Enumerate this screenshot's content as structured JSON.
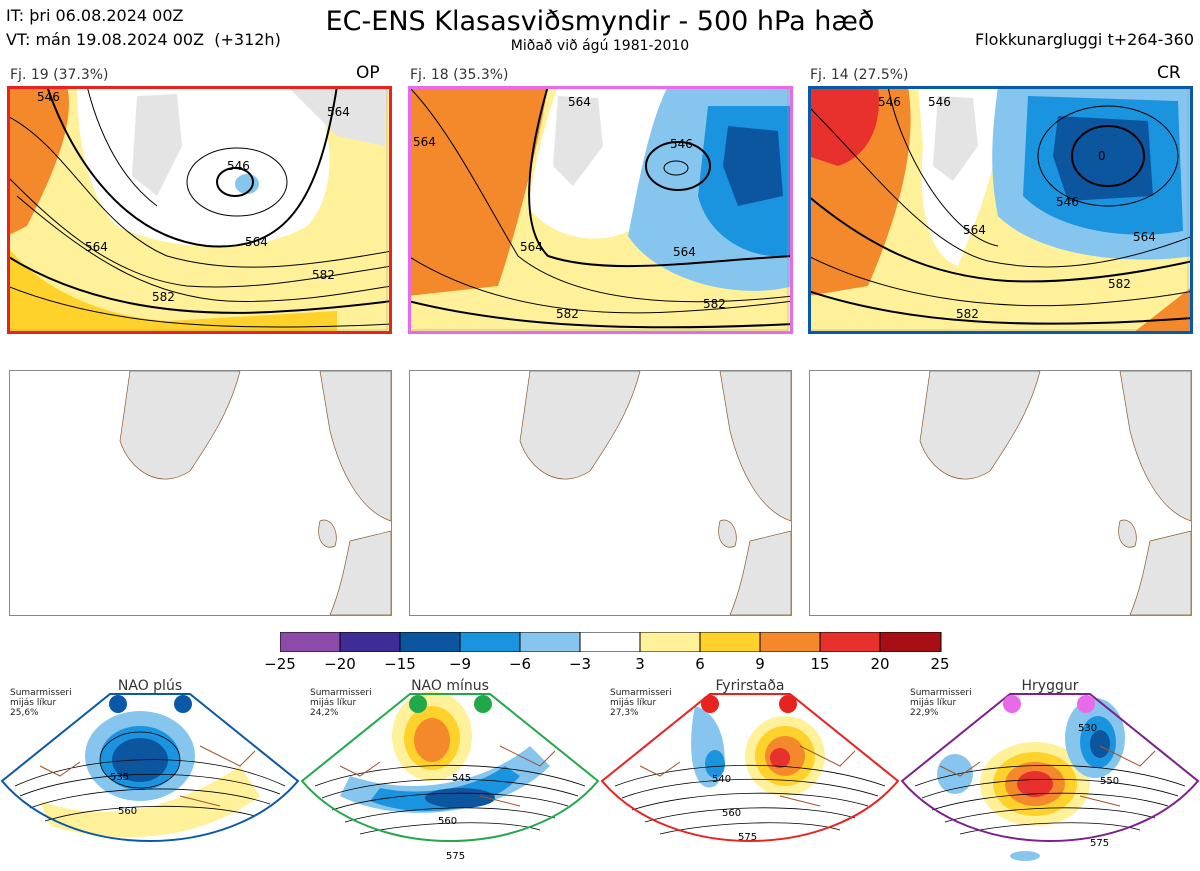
{
  "header": {
    "init_time": "IT: þri 06.08.2024 00Z",
    "valid_time": "VT: mán 19.08.2024 00Z  (+312h)",
    "title": "EC-ENS Klasasviðsmyndir - 500 hPa hæð",
    "subtitle": "Miðað við ágú 1981-2010",
    "window": "Flokkunargluggi t+264-360"
  },
  "clusters": [
    {
      "label": "Fj. 19 (37.3%)",
      "tag": "OP",
      "border_color": "#e8221f",
      "contours": [
        "546",
        "546",
        "564",
        "564",
        "564",
        "582",
        "582"
      ]
    },
    {
      "label": "Fj. 18 (35.3%)",
      "tag": "",
      "border_color": "#e86ae8",
      "contours": [
        "564",
        "564",
        "546",
        "564",
        "564",
        "582",
        "582"
      ]
    },
    {
      "label": "Fj. 14 (27.5%)",
      "tag": "CR",
      "border_color": "#0a58a8",
      "contours": [
        "546",
        "546",
        "0",
        "546",
        "564",
        "564",
        "582",
        "582"
      ]
    }
  ],
  "colorbar": {
    "ticks": [
      "−25",
      "−20",
      "−15",
      "−9",
      "−6",
      "−3",
      "3",
      "6",
      "9",
      "15",
      "20",
      "25"
    ],
    "colors": [
      "#8c4ba8",
      "#3f2d96",
      "#0c56a0",
      "#1a94de",
      "#86c6ee",
      "#ffffff",
      "#fff199",
      "#fed22a",
      "#f4892c",
      "#e8302c",
      "#a60f14"
    ]
  },
  "regimes": [
    {
      "name": "NAO plús",
      "note": "Sumarmisseri mijás líkur 25,6%",
      "color": "#0a58a8",
      "contours": [
        "535",
        "560"
      ]
    },
    {
      "name": "NAO mínus",
      "note": "Sumarmisseri mijás líkur 24,2%",
      "color": "#22a84a",
      "contours": [
        "545",
        "560",
        "575"
      ]
    },
    {
      "name": "Fyrirstaða",
      "note": "Sumarmisseri mijás líkur 27,3%",
      "color": "#e8221f",
      "contours": [
        "540",
        "560",
        "575"
      ]
    },
    {
      "name": "Hryggur",
      "note": "Sumarmisseri mijás líkur 22,9%",
      "color": "#e86ae8",
      "contours": [
        "530",
        "550",
        "575"
      ]
    }
  ]
}
